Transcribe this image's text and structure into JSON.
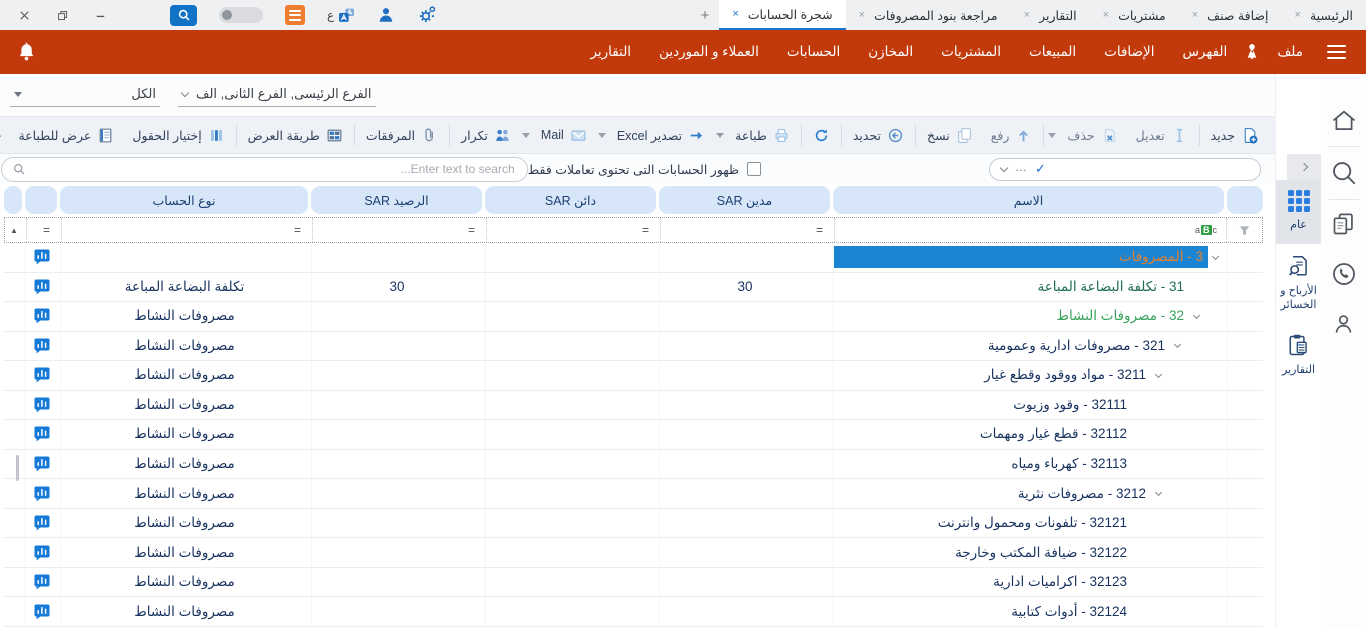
{
  "titlebar": {
    "language_letter": "ع",
    "new_tab_label": "+",
    "tabs": [
      {
        "label": "الرئيسية",
        "active": false
      },
      {
        "label": "إضافة صنف",
        "active": false
      },
      {
        "label": "مشتريات",
        "active": false
      },
      {
        "label": "التقارير",
        "active": false
      },
      {
        "label": "مراجعة بنود المصروفات",
        "active": false
      },
      {
        "label": "شجرة الحسابات",
        "active": true
      }
    ]
  },
  "menubar": {
    "items": [
      "ملف",
      "الفهرس",
      "الإضافات",
      "المبيعات",
      "المشتريات",
      "المخازن",
      "الحسابات",
      "العملاء و الموردين",
      "التقارير"
    ]
  },
  "filters": {
    "branches_value": "الفرع الرئيسى, الفرع الثانى, الف",
    "all_value": "الكل"
  },
  "toolbar": {
    "groups": [
      [
        {
          "label": "جديد",
          "icon": "new"
        }
      ],
      [
        {
          "label": "تعديل",
          "icon": "edit",
          "disabled": true
        },
        {
          "label": "حذف",
          "icon": "delete",
          "disabled": true,
          "caret": true
        }
      ],
      [
        {
          "label": "رفع",
          "icon": "upload",
          "disabled": true
        },
        {
          "label": "نسخ",
          "icon": "copy"
        }
      ],
      [
        {
          "label": "تحديد",
          "icon": "select"
        }
      ],
      [
        {
          "label": "",
          "icon": "refresh"
        }
      ],
      [
        {
          "label": "طباعة",
          "icon": "print",
          "caret": true
        },
        {
          "label": "تصدير Excel",
          "icon": "export",
          "caret": true
        },
        {
          "label": "Mail",
          "icon": "mail",
          "caret": true
        },
        {
          "label": "تكرار",
          "icon": "duplicate"
        }
      ],
      [
        {
          "label": "المرفقات",
          "icon": "attach"
        }
      ],
      [
        {
          "label": "طريقة العرض",
          "icon": "viewmode"
        }
      ],
      [
        {
          "label": "إختيار الحقول",
          "icon": "columns"
        },
        {
          "label": "عرض للطباعة",
          "icon": "preview"
        }
      ]
    ]
  },
  "controls": {
    "combo_dots": "…",
    "combo_check": "✓",
    "checkbox_label": "ظهور الحسابات التى تحتوى تعاملات فقط",
    "search_placeholder": "Enter text to search..."
  },
  "table": {
    "columns": [
      {
        "key": "name",
        "label": "الاسم"
      },
      {
        "key": "debit",
        "label": "مدين SAR"
      },
      {
        "key": "credit",
        "label": "دائن SAR"
      },
      {
        "key": "balance",
        "label": "الرصيد SAR"
      },
      {
        "key": "type",
        "label": "نوع الحساب"
      }
    ],
    "filter_operator": "=",
    "name_filter_icon": "aBc",
    "sort_indicator": "▲",
    "rows": [
      {
        "name": "3 - المصروفات",
        "level": 1,
        "expandable": true,
        "selected": true,
        "debit": "",
        "credit": "",
        "balance": "",
        "type": ""
      },
      {
        "name": "31 - تكلفة البضاعة المباعة",
        "level": 2,
        "expandable": false,
        "color": "darkgreen",
        "debit": "30",
        "credit": "",
        "balance": "30",
        "type": "تكلفة البضاعة المباعة"
      },
      {
        "name": "32 - مصروفات النشاط",
        "level": 2,
        "expandable": true,
        "color": "green",
        "debit": "",
        "credit": "",
        "balance": "",
        "type": "مصروفات النشاط"
      },
      {
        "name": "321 - مصروفات ادارية وعمومية",
        "level": 3,
        "expandable": true,
        "debit": "",
        "credit": "",
        "balance": "",
        "type": "مصروفات النشاط"
      },
      {
        "name": "3211 - مواد ووقود وقطع غيار",
        "level": 4,
        "expandable": true,
        "debit": "",
        "credit": "",
        "balance": "",
        "type": "مصروفات النشاط"
      },
      {
        "name": "32111 - وقود وزيوت",
        "level": 5,
        "expandable": false,
        "debit": "",
        "credit": "",
        "balance": "",
        "type": "مصروفات النشاط"
      },
      {
        "name": "32112 - قطع غيار ومهمات",
        "level": 5,
        "expandable": false,
        "debit": "",
        "credit": "",
        "balance": "",
        "type": "مصروفات النشاط"
      },
      {
        "name": "32113 - كهرباء ومياه",
        "level": 5,
        "expandable": false,
        "debit": "",
        "credit": "",
        "balance": "",
        "type": "مصروفات النشاط"
      },
      {
        "name": "3212 - مصروفات نثرية",
        "level": 4,
        "expandable": true,
        "debit": "",
        "credit": "",
        "balance": "",
        "type": "مصروفات النشاط"
      },
      {
        "name": "32121 - تلفونات ومحمول وانترنت",
        "level": 5,
        "expandable": false,
        "debit": "",
        "credit": "",
        "balance": "",
        "type": "مصروفات النشاط"
      },
      {
        "name": "32122 - ضيافة المكتب وخارجة",
        "level": 5,
        "expandable": false,
        "debit": "",
        "credit": "",
        "balance": "",
        "type": "مصروفات النشاط"
      },
      {
        "name": "32123 - اكراميات ادارية",
        "level": 5,
        "expandable": false,
        "debit": "",
        "credit": "",
        "balance": "",
        "type": "مصروفات النشاط"
      },
      {
        "name": "32124 - أدوات كتابية",
        "level": 5,
        "expandable": false,
        "debit": "",
        "credit": "",
        "balance": "",
        "type": "مصروفات النشاط"
      }
    ]
  },
  "sidebar": {
    "tabs": [
      {
        "label": "عام",
        "icon": "grid",
        "active": true
      },
      {
        "label": "الأرباح و الخسائر",
        "icon": "profit-search",
        "active": false
      },
      {
        "label": "التقارير",
        "icon": "reports",
        "active": false
      }
    ],
    "rail": [
      {
        "icon": "home",
        "sep_after": true
      },
      {
        "icon": "search",
        "sep_after": true
      },
      {
        "icon": "documents",
        "sep_after": false
      },
      {
        "icon": "whatsapp",
        "sep_after": false
      },
      {
        "icon": "person",
        "sep_after": false
      }
    ]
  },
  "colors": {
    "menubar_orange": "#c23a0c",
    "selection_blue": "#1b84d3",
    "selected_text_orange": "#e5822e",
    "green_account": "#37a25c",
    "dark_green_account": "#1e6e52",
    "navy_text": "#17325e",
    "header_pill": "#d8e6f9",
    "icon_blue": "#2f7cc6"
  }
}
